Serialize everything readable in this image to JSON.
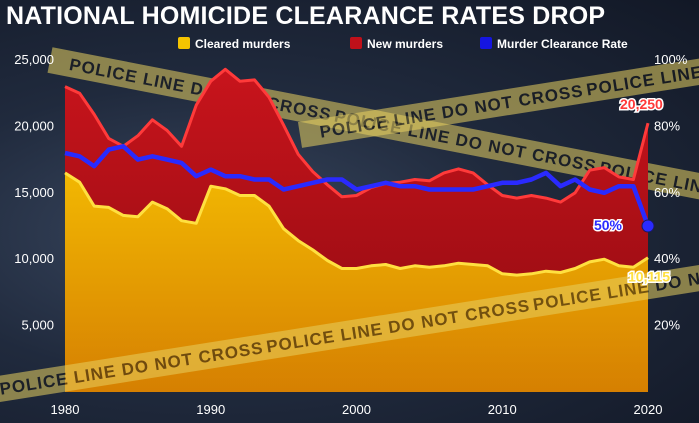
{
  "title": "NATIONAL HOMICIDE CLEARANCE RATES DROP",
  "tape_text": "POLICE LINE DO NOT CROSS",
  "colors": {
    "cleared": "#f5c400",
    "new": "#c0101a",
    "rate": "#1515e0",
    "cleared_line": "#ffe040",
    "new_line": "#ff3a3a",
    "rate_line": "#2a2aff",
    "tape": "#e7d060"
  },
  "chart_data": {
    "type": "area",
    "title": "NATIONAL HOMICIDE CLEARANCE RATES DROP",
    "x": [
      1980,
      1981,
      1982,
      1983,
      1984,
      1985,
      1986,
      1987,
      1988,
      1989,
      1990,
      1991,
      1992,
      1993,
      1994,
      1995,
      1996,
      1997,
      1998,
      1999,
      2000,
      2001,
      2002,
      2003,
      2004,
      2005,
      2006,
      2007,
      2008,
      2009,
      2010,
      2011,
      2012,
      2013,
      2014,
      2015,
      2016,
      2017,
      2018,
      2019,
      2020
    ],
    "series": [
      {
        "name": "Cleared murders",
        "axis": "left",
        "values": [
          16500,
          15800,
          14000,
          13900,
          13300,
          13200,
          14300,
          13800,
          12900,
          12700,
          15500,
          15300,
          14800,
          14800,
          14000,
          12300,
          11400,
          10700,
          9900,
          9300,
          9300,
          9500,
          9600,
          9300,
          9500,
          9400,
          9500,
          9700,
          9600,
          9500,
          8900,
          8800,
          8900,
          9100,
          9000,
          9300,
          9800,
          10000,
          9500,
          9400,
          10115
        ]
      },
      {
        "name": "New murders",
        "axis": "left",
        "values": [
          23000,
          22500,
          20900,
          19100,
          18500,
          19300,
          20500,
          19700,
          18500,
          21600,
          23400,
          24300,
          23400,
          23500,
          22200,
          20100,
          17900,
          16600,
          15600,
          14700,
          14800,
          15400,
          15700,
          15800,
          16000,
          15900,
          16500,
          16800,
          16500,
          15600,
          14800,
          14600,
          14800,
          14600,
          14300,
          15000,
          16700,
          16900,
          16200,
          16000,
          20250
        ]
      },
      {
        "name": "Murder Clearance Rate",
        "axis": "right",
        "unit": "%",
        "values": [
          72,
          71,
          68,
          73,
          74,
          70,
          71,
          70,
          69,
          65,
          67,
          65,
          65,
          64,
          64,
          61,
          62,
          63,
          64,
          64,
          61,
          62,
          63,
          62,
          62,
          61,
          61,
          61,
          61,
          62,
          63,
          63,
          64,
          66,
          62,
          64,
          61,
          60,
          62,
          62,
          50
        ]
      }
    ],
    "annotations": [
      {
        "series": "New murders",
        "x": 2020,
        "label": "20,250"
      },
      {
        "series": "Murder Clearance Rate",
        "x": 2020,
        "label": "50%"
      },
      {
        "series": "Cleared murders",
        "x": 2020,
        "label": "10,115"
      }
    ],
    "x_ticks": [
      1980,
      1990,
      2000,
      2010,
      2020
    ],
    "x_tick_labels": [
      "1980",
      "1990",
      "2000",
      "2010",
      "2020"
    ],
    "y_left": {
      "min": 0,
      "max": 25000,
      "ticks": [
        5000,
        10000,
        15000,
        20000,
        25000
      ],
      "tick_labels": [
        "5,000",
        "10,000",
        "15,000",
        "20,000",
        "25,000"
      ]
    },
    "y_right": {
      "min": 0,
      "max": 100,
      "ticks": [
        20,
        40,
        60,
        80,
        100
      ],
      "tick_labels": [
        "20%",
        "40%",
        "60%",
        "80%",
        "100%"
      ]
    },
    "xlabel": "",
    "ylabel": "",
    "legend": {
      "position": "top",
      "entries": [
        "Cleared murders",
        "New murders",
        "Murder Clearance Rate"
      ]
    },
    "grid": false
  }
}
